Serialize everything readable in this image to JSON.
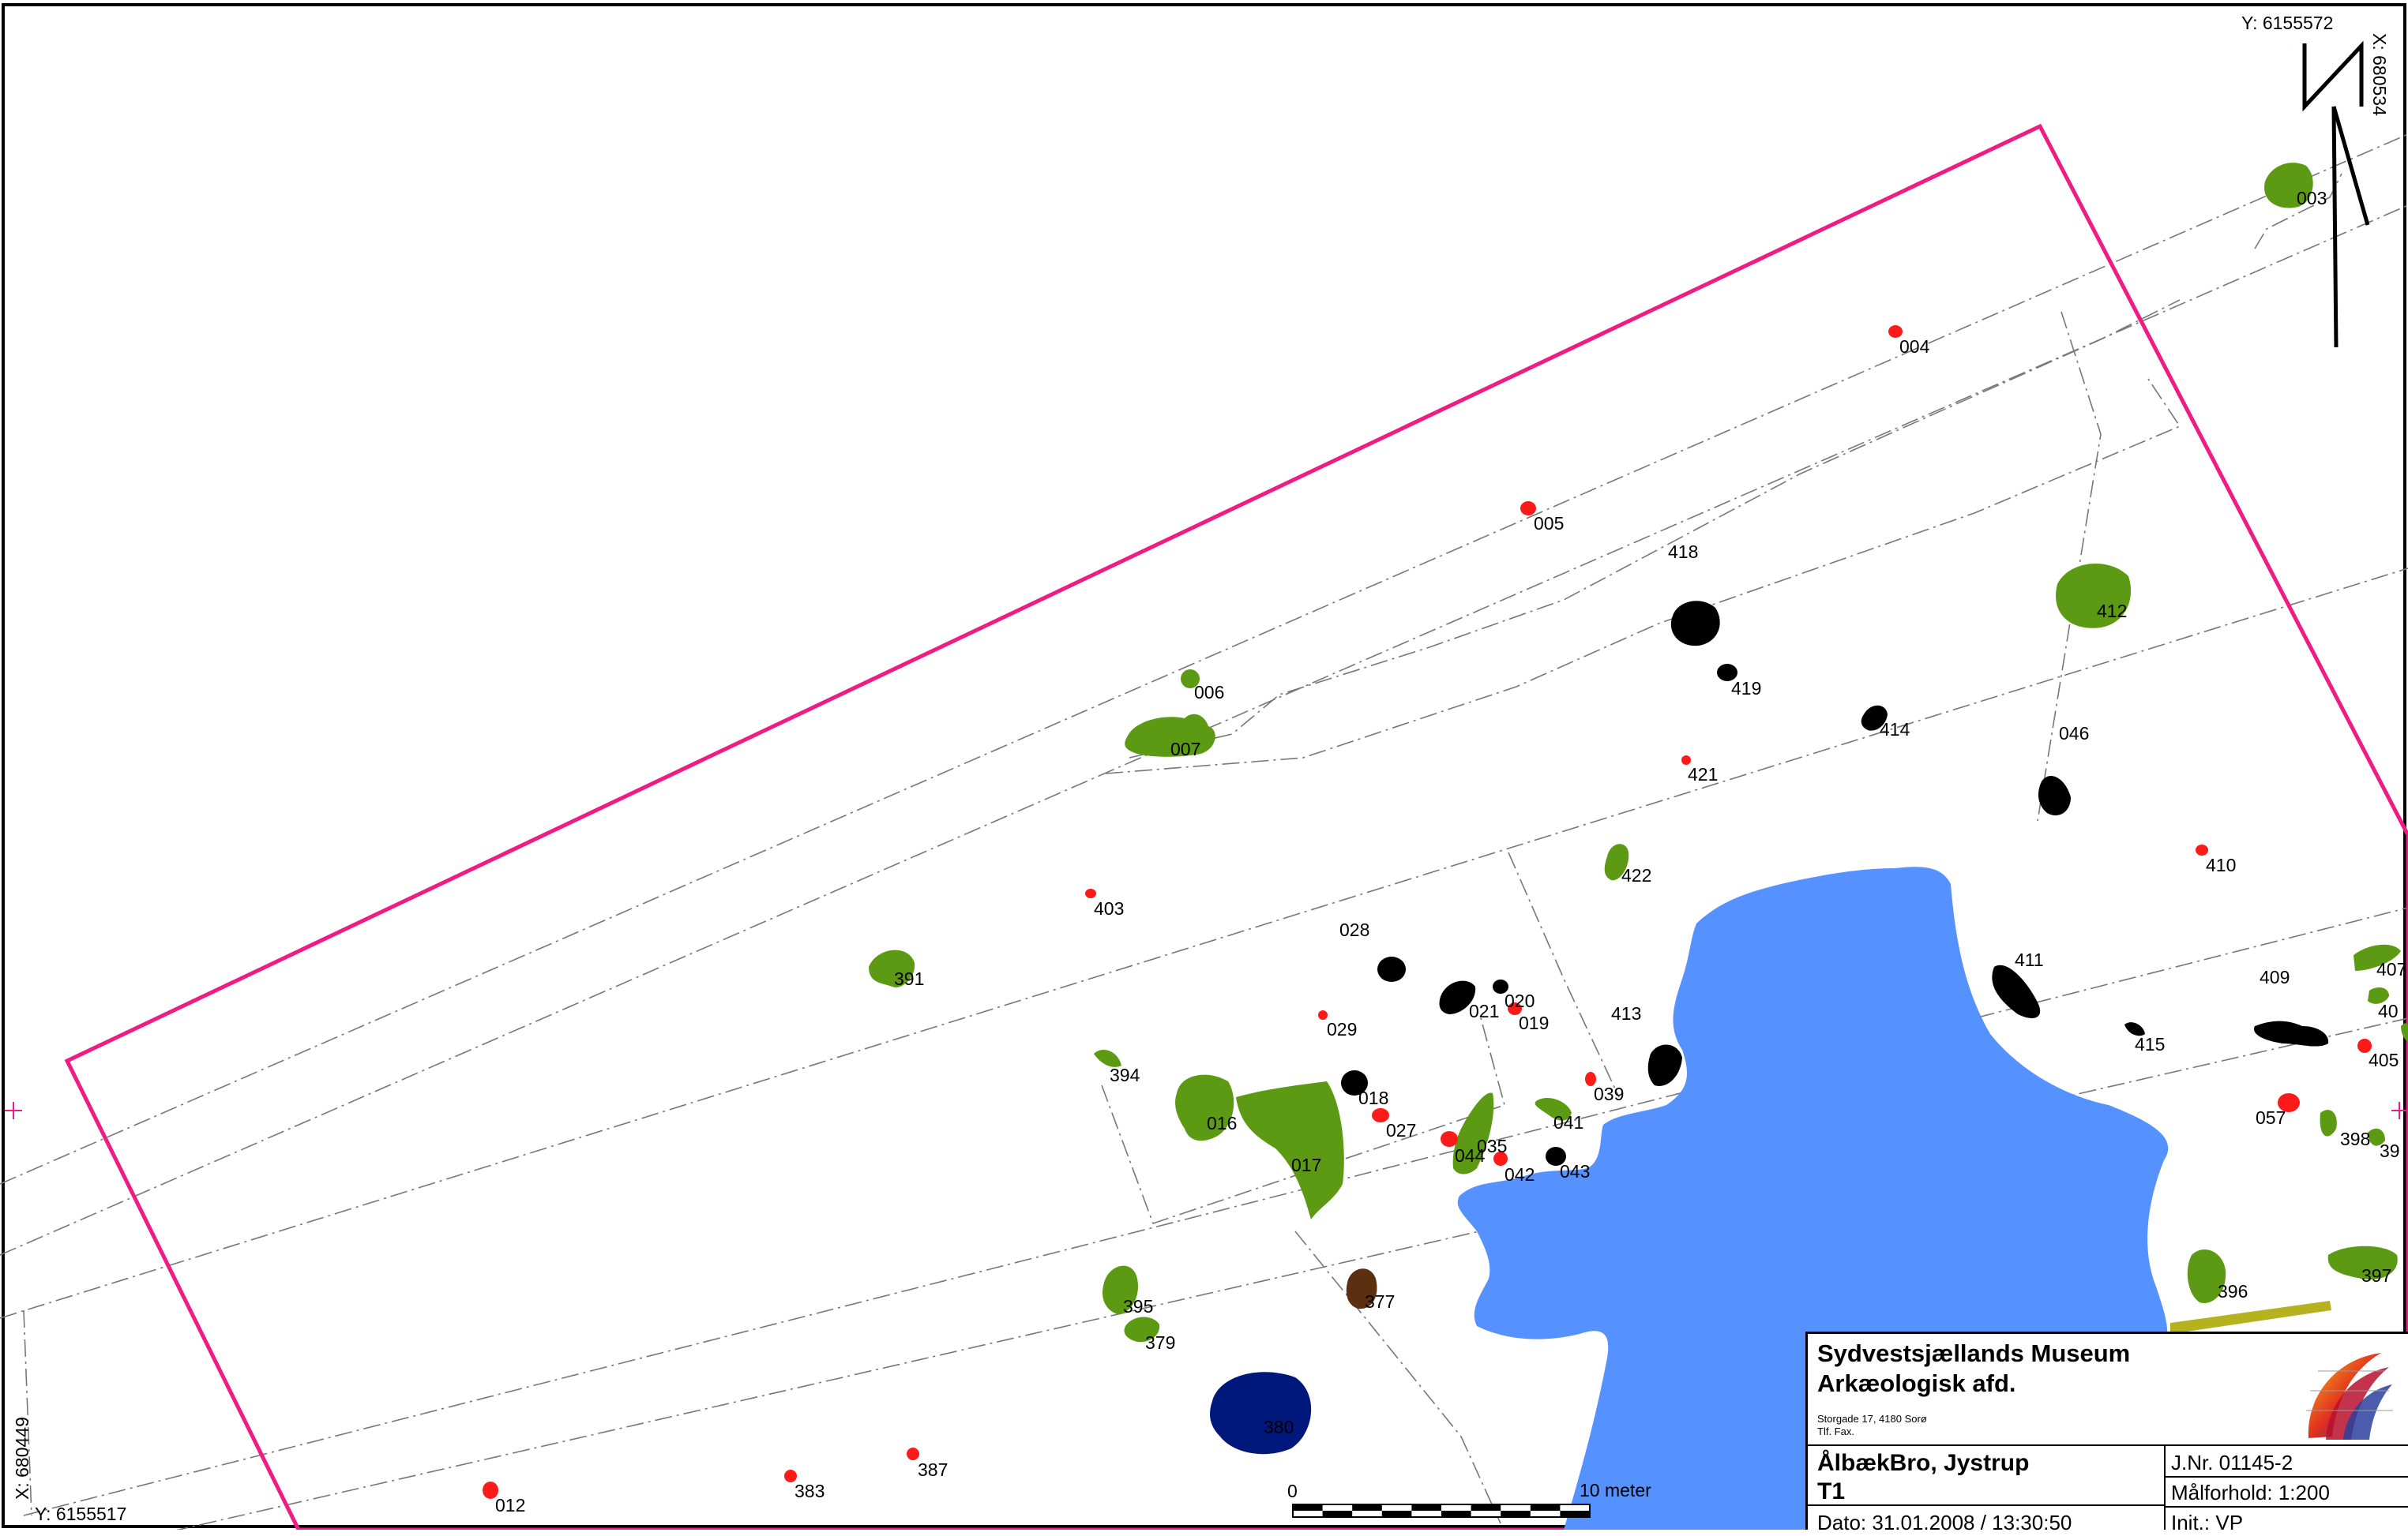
{
  "map": {
    "coords": {
      "top_y": "Y: 6155572",
      "top_x": "X: 680534",
      "bottom_y": "Y: 6155517",
      "bottom_x": "X: 680449"
    },
    "north_arrow_letter": "N",
    "scale_bar": {
      "start": "0",
      "end": "10 meter"
    },
    "colors": {
      "excavation_boundary": "#ee1c84",
      "feature_green": "#5b9a12",
      "feature_red": "#ff1a1a",
      "feature_black": "#000000",
      "lake_blue": "#5591ff",
      "pit_navy": "#00187c",
      "feature_brown": "#5a3010",
      "feature_olive": "#b5b11f"
    },
    "features": [
      {
        "id": "003"
      },
      {
        "id": "004"
      },
      {
        "id": "005"
      },
      {
        "id": "418"
      },
      {
        "id": "412"
      },
      {
        "id": "006"
      },
      {
        "id": "419"
      },
      {
        "id": "414"
      },
      {
        "id": "046"
      },
      {
        "id": "007"
      },
      {
        "id": "421"
      },
      {
        "id": "410"
      },
      {
        "id": "422"
      },
      {
        "id": "403"
      },
      {
        "id": "028"
      },
      {
        "id": "391"
      },
      {
        "id": "411"
      },
      {
        "id": "407"
      },
      {
        "id": "409"
      },
      {
        "id": "021"
      },
      {
        "id": "020"
      },
      {
        "id": "019"
      },
      {
        "id": "413"
      },
      {
        "id": "029"
      },
      {
        "id": "415"
      },
      {
        "id": "40"
      },
      {
        "id": "405"
      },
      {
        "id": "394"
      },
      {
        "id": "039"
      },
      {
        "id": "018"
      },
      {
        "id": "016"
      },
      {
        "id": "027"
      },
      {
        "id": "041"
      },
      {
        "id": "035"
      },
      {
        "id": "044"
      },
      {
        "id": "057"
      },
      {
        "id": "398"
      },
      {
        "id": "39"
      },
      {
        "id": "042"
      },
      {
        "id": "043"
      },
      {
        "id": "017"
      },
      {
        "id": "397"
      },
      {
        "id": "396"
      },
      {
        "id": "377"
      },
      {
        "id": "395"
      },
      {
        "id": "379"
      },
      {
        "id": "380"
      },
      {
        "id": "387"
      },
      {
        "id": "383"
      },
      {
        "id": "012"
      }
    ]
  },
  "titleblock": {
    "org_line1": "Sydvestsjællands Museum",
    "org_line2": "Arkæologisk afd.",
    "address": "Storgade 17, 4180 Sorø",
    "phone": "Tlf.  Fax.",
    "site": "ÅlbækBro, Jystrup",
    "sheet": "T1",
    "jnr": "J.Nr. 01145-2",
    "scale": "Målforhold: 1:200",
    "date": "Dato: 31.01.2008 / 13:30:50",
    "init": "Init.: VP"
  }
}
